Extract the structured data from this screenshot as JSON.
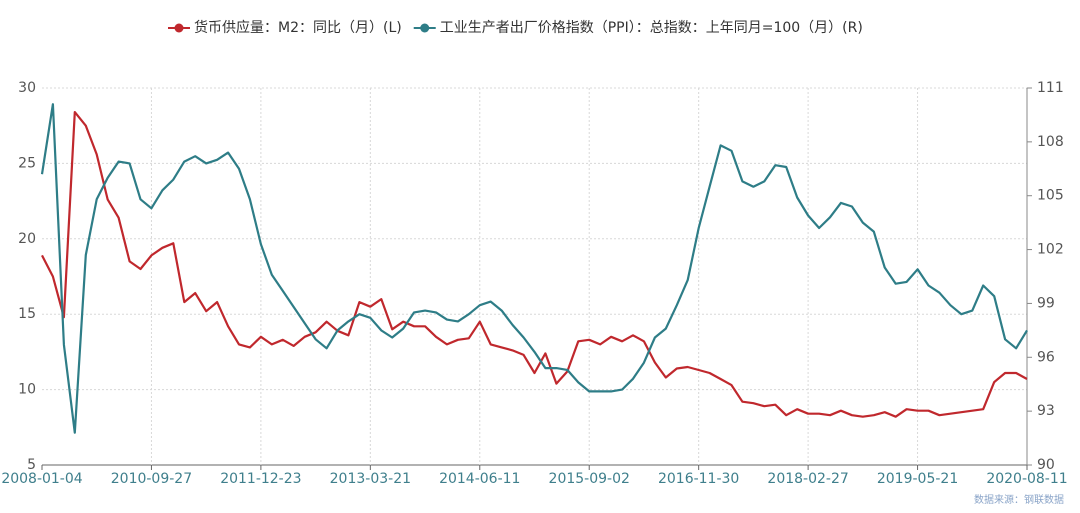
{
  "chart_data": {
    "type": "line",
    "categories": [
      "2008-01-04",
      null,
      null,
      null,
      null,
      null,
      null,
      null,
      null,
      null,
      "2010-09-27",
      null,
      null,
      null,
      null,
      null,
      null,
      null,
      null,
      null,
      "2011-12-23",
      null,
      null,
      null,
      null,
      null,
      null,
      null,
      null,
      null,
      "2013-03-21",
      null,
      null,
      null,
      null,
      null,
      null,
      null,
      null,
      null,
      "2014-06-11",
      null,
      null,
      null,
      null,
      null,
      null,
      null,
      null,
      null,
      "2015-09-02",
      null,
      null,
      null,
      null,
      null,
      null,
      null,
      null,
      null,
      "2016-11-30",
      null,
      null,
      null,
      null,
      null,
      null,
      null,
      null,
      null,
      "2018-02-27",
      null,
      null,
      null,
      null,
      null,
      null,
      null,
      null,
      null,
      "2019-05-21",
      null,
      null,
      null,
      null,
      null,
      null,
      null,
      null,
      null,
      "2020-08-11"
    ],
    "series": [
      {
        "name": "货币供应量：M2：同比（月）(L)",
        "color": "#c0282d",
        "axis": "y",
        "values": [
          18.9,
          17.5,
          14.8,
          28.4,
          27.5,
          25.6,
          22.6,
          21.4,
          18.5,
          18.0,
          18.9,
          19.4,
          19.7,
          15.8,
          16.4,
          15.2,
          15.8,
          14.2,
          13.0,
          12.8,
          13.5,
          13.0,
          13.3,
          12.9,
          13.5,
          13.8,
          14.5,
          13.9,
          13.6,
          15.8,
          15.5,
          16.0,
          14.0,
          14.5,
          14.2,
          14.2,
          13.5,
          13.0,
          13.3,
          13.4,
          14.5,
          13.0,
          12.8,
          12.6,
          12.3,
          11.1,
          12.4,
          10.4,
          11.2,
          13.2,
          13.3,
          13.0,
          13.5,
          13.2,
          13.6,
          13.2,
          11.8,
          10.8,
          11.4,
          11.5,
          11.3,
          11.1,
          10.7,
          10.3,
          9.2,
          9.1,
          8.9,
          9.0,
          8.3,
          8.7,
          8.4,
          8.4,
          8.3,
          8.6,
          8.3,
          8.2,
          8.3,
          8.5,
          8.2,
          8.7,
          8.6,
          8.6,
          8.3,
          8.4,
          8.5,
          8.6,
          8.7,
          10.5,
          11.1,
          11.1,
          10.7
        ]
      },
      {
        "name": "工业生产者出厂价格指数（PPI）：总指数：上年同月=100（月）(R)",
        "color": "#2e7d87",
        "axis": "y2",
        "values": [
          106.2,
          110.1,
          96.7,
          91.8,
          101.7,
          104.8,
          106.0,
          106.9,
          106.8,
          104.8,
          104.3,
          105.3,
          105.9,
          106.9,
          107.2,
          106.8,
          107.0,
          107.4,
          106.5,
          104.8,
          102.3,
          100.6,
          99.7,
          98.8,
          97.9,
          97.0,
          96.5,
          97.5,
          98.0,
          98.4,
          98.2,
          97.5,
          97.1,
          97.6,
          98.5,
          98.6,
          98.5,
          98.1,
          98.0,
          98.4,
          98.9,
          99.1,
          98.6,
          97.8,
          97.1,
          96.3,
          95.4,
          95.4,
          95.3,
          94.6,
          94.1,
          94.1,
          94.1,
          94.2,
          94.8,
          95.7,
          97.1,
          97.6,
          98.9,
          100.3,
          103.2,
          105.5,
          107.8,
          107.5,
          105.8,
          105.5,
          105.8,
          106.7,
          106.6,
          104.9,
          103.9,
          103.2,
          103.8,
          104.6,
          104.4,
          103.5,
          103.0,
          101.0,
          100.1,
          100.2,
          100.9,
          100.0,
          99.6,
          98.9,
          98.4,
          98.6,
          100.0,
          99.4,
          97.0,
          96.5,
          97.5
        ]
      }
    ],
    "ylim": [
      5,
      30
    ],
    "yticks": [
      5,
      10,
      15,
      20,
      25,
      30
    ],
    "y2lim": [
      90,
      111
    ],
    "y2ticks": [
      90,
      93,
      96,
      99,
      102,
      105,
      108,
      111
    ],
    "grid": true,
    "source": "数据来源：钢联数据"
  }
}
